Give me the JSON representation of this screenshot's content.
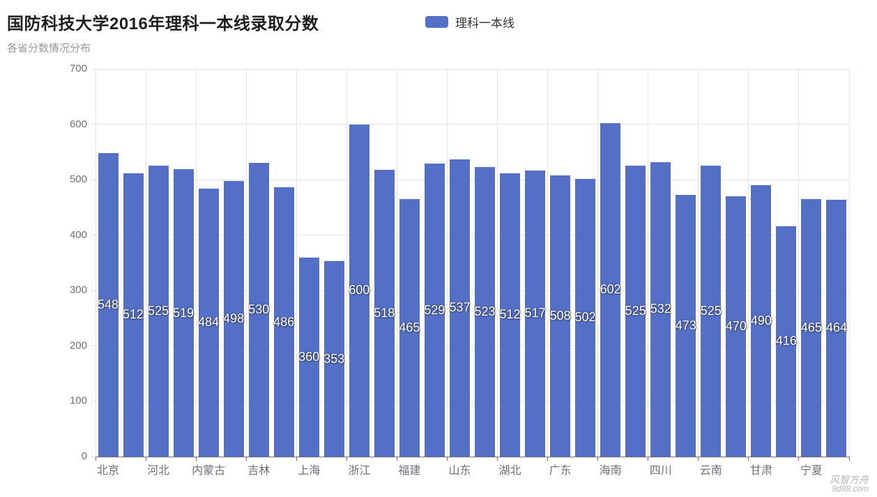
{
  "title": "国防科技大学2016年理科一本线录取分数",
  "subtitle": "各省分数情况分布",
  "legend": {
    "items": [
      {
        "label": "理科一本线",
        "color": "#5470C6"
      }
    ]
  },
  "watermark": {
    "line1": "风智方舟",
    "line2": "9d88.com"
  },
  "chart_data": {
    "type": "bar",
    "title": "国防科技大学2016年理科一本线录取分数",
    "subtitle": "各省分数情况分布",
    "series": [
      {
        "name": "理科一本线",
        "color": "#5470C6",
        "values": [
          548,
          512,
          525,
          519,
          484,
          498,
          530,
          486,
          360,
          353,
          600,
          518,
          465,
          529,
          537,
          523,
          512,
          517,
          508,
          502,
          602,
          525,
          532,
          473,
          525,
          470,
          490,
          416,
          465,
          464
        ]
      }
    ],
    "num_bars": 30,
    "x_tick_labels": [
      "北京",
      "河北",
      "内蒙古",
      "吉林",
      "上海",
      "浙江",
      "福建",
      "山东",
      "湖北",
      "广东",
      "海南",
      "四川",
      "云南",
      "甘肃",
      "宁夏"
    ],
    "x_label_interval": 2,
    "xlabel": "",
    "ylabel": "",
    "ylim": [
      0,
      700
    ],
    "y_ticks": [
      0,
      100,
      200,
      300,
      400,
      500,
      600,
      700
    ],
    "grid": true,
    "legend_position": "top",
    "value_labels_position": "inside-middle"
  },
  "colors": {
    "bar": "#5470C6",
    "grid": "#E0E6F1",
    "axis_line": "#6E7079",
    "axis_label": "#6E7079",
    "title": "#1f1f1f",
    "subtitle": "#999999",
    "value_label": "#ffffff",
    "watermark": "#b4b4ba"
  }
}
